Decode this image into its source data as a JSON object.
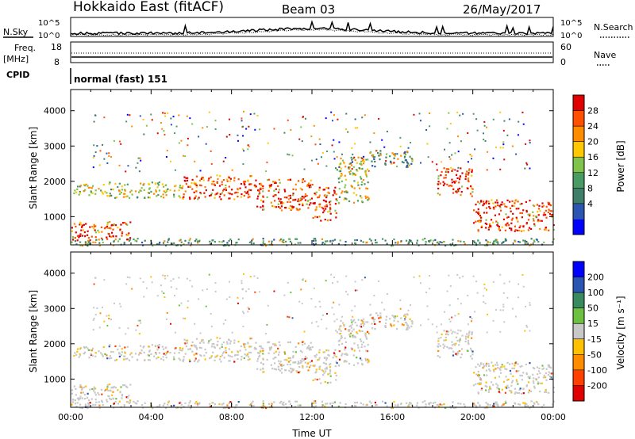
{
  "header": {
    "station": "Hokkaido East (fitACF)",
    "beam": "Beam 03",
    "date": "26/May/2017"
  },
  "top_panels": {
    "nsky_label": "N.Sky",
    "nsearch_label": "N.Search",
    "count_ticks": [
      "10^5",
      "10^0"
    ],
    "freq_label": "Freq.",
    "freq_unit": "[MHz]",
    "freq_ticks": [
      "18",
      "8"
    ],
    "nave_label": "Nave",
    "nave_ticks": [
      "60",
      "0"
    ],
    "cpid_label": "CPID",
    "cpid_text": "normal (fast) 151"
  },
  "colors": {
    "power": [
      "#0000ff",
      "#2a55b0",
      "#3f7f6a",
      "#4a9a63",
      "#7fc34a",
      "#ffc800",
      "#ff8c00",
      "#ff5000",
      "#e00000"
    ],
    "velocity": [
      "#e00000",
      "#ff4000",
      "#ff8c00",
      "#ffc000",
      "#c8c8c8",
      "#6ec040",
      "#3a8a60",
      "#2a55b0",
      "#0000ff"
    ]
  },
  "chart_data": [
    {
      "type": "heatmap",
      "name": "power",
      "ylabel": "Slant Range [km]",
      "yticks": [
        "4000",
        "3000",
        "2000",
        "1000"
      ],
      "ylim": [
        200,
        4600
      ],
      "xlim": [
        "00:00",
        "24:00"
      ],
      "colorbar_label": "Power [dB]",
      "colorbar_ticks": [
        "28",
        "24",
        "20",
        "16",
        "12",
        "8",
        "4"
      ],
      "bands": [
        {
          "t0": 0.0,
          "t1": 1.5,
          "r0": 1600,
          "r1": 1950,
          "kind": "mid"
        },
        {
          "t0": 1.5,
          "t1": 5.5,
          "r0": 1550,
          "r1": 2000,
          "kind": "mid"
        },
        {
          "t0": 5.5,
          "t1": 9.0,
          "r0": 1500,
          "r1": 2200,
          "kind": "high"
        },
        {
          "t0": 9.0,
          "t1": 12.0,
          "r0": 1200,
          "r1": 2100,
          "kind": "high"
        },
        {
          "t0": 12.0,
          "t1": 13.2,
          "r0": 900,
          "r1": 1900,
          "kind": "high"
        },
        {
          "t0": 13.2,
          "t1": 14.8,
          "r0": 1400,
          "r1": 2700,
          "kind": "mid"
        },
        {
          "t0": 14.8,
          "t1": 17.0,
          "r0": 2400,
          "r1": 2900,
          "kind": "low"
        },
        {
          "t0": 18.2,
          "t1": 20.0,
          "r0": 1600,
          "r1": 2400,
          "kind": "high"
        },
        {
          "t0": 20.0,
          "t1": 24.0,
          "r0": 600,
          "r1": 1500,
          "kind": "high"
        },
        {
          "t0": 0.0,
          "t1": 3.0,
          "r0": 350,
          "r1": 900,
          "kind": "high"
        },
        {
          "t0": 0.0,
          "t1": 24.0,
          "r0": 200,
          "r1": 400,
          "kind": "low"
        }
      ]
    },
    {
      "type": "heatmap",
      "name": "velocity",
      "ylabel": "Slant Range [km]",
      "yticks": [
        "4000",
        "3000",
        "2000",
        "1000"
      ],
      "ylim": [
        200,
        4600
      ],
      "xlim": [
        "00:00",
        "24:00"
      ],
      "xticks": [
        "00:00",
        "04:00",
        "08:00",
        "12:00",
        "16:00",
        "20:00",
        "00:00"
      ],
      "xlabel": "Time UT",
      "colorbar_label": "Velocity [m s⁻¹]",
      "colorbar_ticks": [
        "200",
        "100",
        "50",
        "15",
        "-15",
        "-50",
        "-100",
        "-200"
      ]
    }
  ]
}
